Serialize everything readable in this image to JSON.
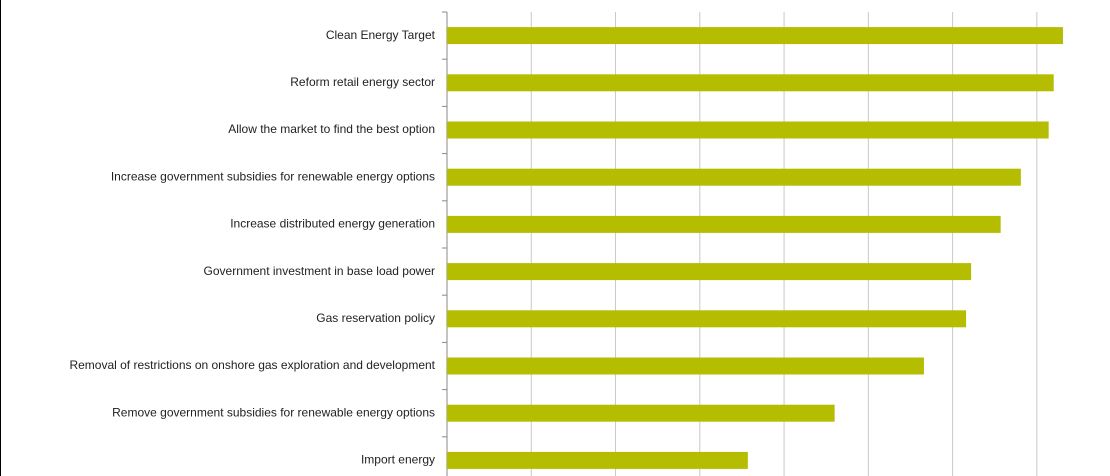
{
  "chart_data": {
    "type": "bar",
    "orientation": "horizontal",
    "categories": [
      "Clean Energy Target",
      "Reform retail energy sector",
      "Allow the market to find the best option",
      "Increase government subsidies for renewable energy options",
      "Increase distributed energy generation",
      "Government investment in base load power",
      "Gas reservation policy",
      "Removal of restrictions on onshore gas exploration and development",
      "Remove government subsidies for renewable energy options",
      "Import energy"
    ],
    "values": [
      7.31,
      7.2,
      7.14,
      6.81,
      6.57,
      6.22,
      6.16,
      5.66,
      4.6,
      3.57
    ],
    "color": "#b5bd00",
    "xlim": [
      0,
      7.5
    ],
    "xticks": [
      0,
      1,
      2,
      3,
      4,
      5,
      6,
      7
    ],
    "grid": true
  }
}
